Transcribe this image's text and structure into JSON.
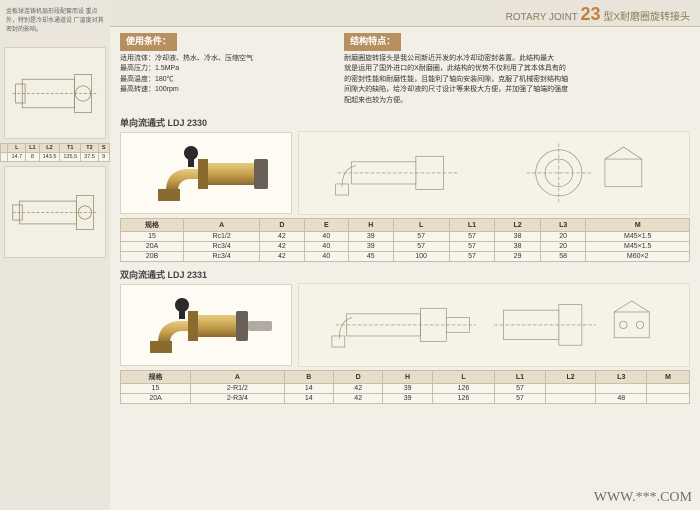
{
  "header": {
    "rotary": "ROTARY JOINT",
    "num": "23",
    "suffix": "型X耐磨圈旋转接头"
  },
  "leftcol": {
    "text1": "金板球连铸机扇形段配套而设\n重点外，特别是冷却水通道设\n厂温度对其密封的影响。",
    "diag_hint": "diagram",
    "table": {
      "cols": [
        "",
        "L",
        "L1",
        "L2",
        "T1",
        "T2",
        "S"
      ],
      "rows": [
        [
          "",
          "14.7",
          "8",
          "143.5",
          "135.5",
          "37.5",
          "9"
        ]
      ]
    }
  },
  "cond": {
    "title1": "使用条件：",
    "l1": "适用流体：冷却液、热水、冷水、压缩空气",
    "l2": "最高压力：1.5MPa",
    "l3": "最高温度：180℃",
    "l4": "最高转速：100rpm",
    "title2": "结构特点：",
    "r1": "耐磨圈旋转接头是我公司新近开发的水冷却动密封装置。此结构最大",
    "r2": "就是运用了国外进口的X耐磨圈，此结构的优势不仅利用了其本体具有的",
    "r3": "的密封性能和耐磨性能，且能利了轴向安装间隙，克服了机械密封结构轴",
    "r4": "间隙大的缺陷，给冷却液的尺寸设计等来极大方便，并加强了轴端的强度",
    "r5": "配起来也较为方便。"
  },
  "prod1": {
    "title": "单向流通式  LDJ 2330",
    "cols": [
      "规格",
      "A",
      "D",
      "E",
      "H",
      "L",
      "L1",
      "L2",
      "L3",
      "M"
    ],
    "rows": [
      [
        "15",
        "Rc1/2",
        "42",
        "40",
        "39",
        "57",
        "57",
        "38",
        "20",
        "M45×1.5"
      ],
      [
        "20A",
        "Rc3/4",
        "42",
        "40",
        "39",
        "57",
        "57",
        "38",
        "20",
        "M45×1.5"
      ],
      [
        "20B",
        "Rc3/4",
        "42",
        "40",
        "45",
        "100",
        "57",
        "29",
        "58",
        "M60×2"
      ]
    ]
  },
  "prod2": {
    "title": "双向流通式  LDJ 2331",
    "cols": [
      "规格",
      "A",
      "B",
      "D",
      "H",
      "L",
      "L1",
      "L2",
      "L3",
      "M"
    ],
    "rows": [
      [
        "15",
        "2-R1/2",
        "14",
        "42",
        "39",
        "126",
        "57",
        "",
        "",
        ""
      ],
      [
        "20A",
        "2-R3/4",
        "14",
        "42",
        "39",
        "126",
        "57",
        "",
        "48",
        ""
      ]
    ]
  },
  "watermark": "WWW.***.COM",
  "colors": {
    "title_bg": "#b89060",
    "border": "#c8beac",
    "th_bg": "#e8ddc8",
    "brass1": "#c9a24e",
    "brass2": "#8a6b2f",
    "brass3": "#e6cc80",
    "steel": "#888078",
    "diag_line": "#9a8a6a"
  }
}
